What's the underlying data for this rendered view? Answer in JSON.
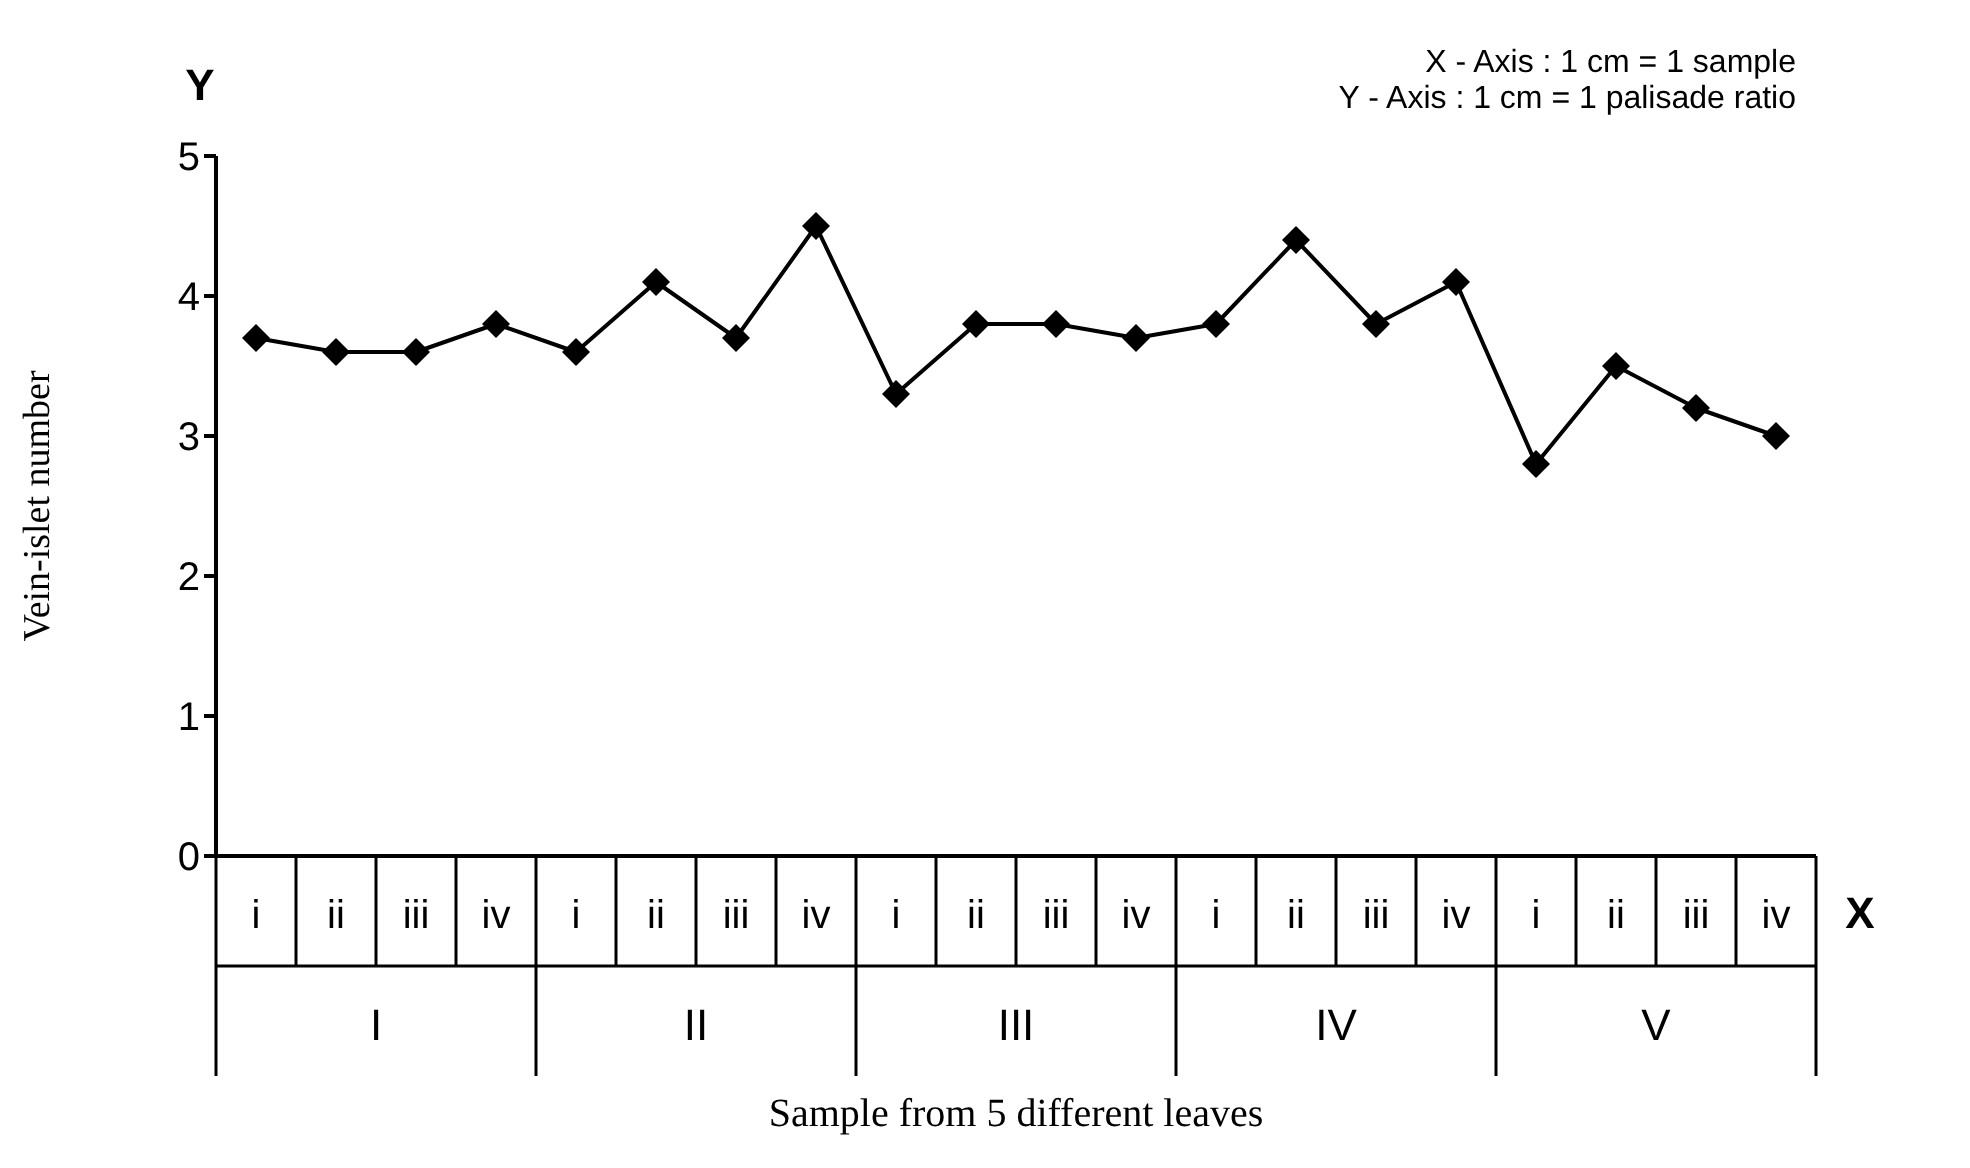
{
  "chart_data": {
    "type": "line",
    "xlabel": "Sample from 5 different leaves",
    "ylabel": "Vein-islet number",
    "categories": [
      "i",
      "ii",
      "iii",
      "iv",
      "i",
      "ii",
      "iii",
      "iv",
      "i",
      "ii",
      "iii",
      "iv",
      "i",
      "ii",
      "iii",
      "iv",
      "i",
      "ii",
      "iii",
      "iv"
    ],
    "series": [
      {
        "color": "#000000",
        "values": [
          3.7,
          3.6,
          3.6,
          3.8,
          3.6,
          4.1,
          3.7,
          4.5,
          3.3,
          3.8,
          3.8,
          3.7,
          3.8,
          4.4,
          3.8,
          4.1,
          2.8,
          3.5,
          3.2,
          3.0
        ]
      }
    ],
    "ylim": [
      0,
      5
    ],
    "yticks": [
      0,
      1,
      2,
      3,
      4,
      5
    ],
    "marker": "diamond",
    "line_style": "solid",
    "grid": false,
    "legend": false,
    "annotations": [
      "X - Axis : 1 cm = 1 sample",
      "Y - Axis : 1 cm = 1 palisade ratio",
      "Y",
      "X",
      "I",
      "II",
      "III",
      "IV",
      "V"
    ]
  }
}
